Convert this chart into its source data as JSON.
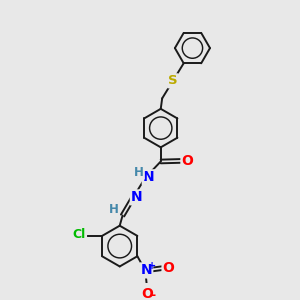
{
  "bg_color": "#e8e8e8",
  "bond_color": "#1a1a1a",
  "bond_width": 1.4,
  "atom_colors": {
    "S": "#bbaa00",
    "O": "#ff0000",
    "N": "#0000ff",
    "Cl": "#00bb00",
    "H": "#4488aa",
    "C": "#1a1a1a"
  },
  "figsize": [
    3.0,
    3.0
  ],
  "dpi": 100
}
